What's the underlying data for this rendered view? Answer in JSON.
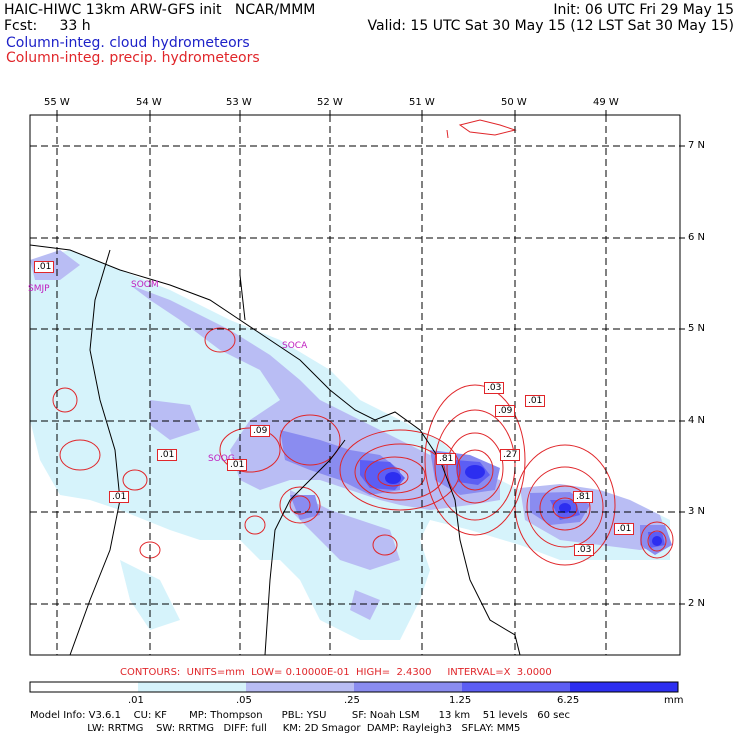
{
  "header": {
    "line1_left": "HAIC-HIWC 13km ARW-GFS init   NCAR/MMM",
    "line1_right": "Init: 06 UTC Fri 29 May 15",
    "line2_left": "Fcst:     33 h",
    "line2_right": "Valid: 15 UTC Sat 30 May 15 (12 LST Sat 30 May 15)",
    "field_cloud": "Column-integ. cloud hydrometeors",
    "field_precip": "Column-integ. precip. hydrometeors"
  },
  "colors": {
    "cloud_text": "#1e22c8",
    "precip_text": "#e0262a",
    "shade_levels": [
      "#ffffff",
      "#d6f3fb",
      "#b9bdf4",
      "#8a8cf0",
      "#5c5ef4",
      "#2c2ef0"
    ]
  },
  "axes": {
    "lon_labels": [
      "55 W",
      "54 W",
      "53 W",
      "52 W",
      "51 W",
      "50 W",
      "49 W"
    ],
    "lat_labels": [
      "7 N",
      "6 N",
      "5 N",
      "4 N",
      "3 N",
      "2 N"
    ]
  },
  "stations": [
    "SMJP",
    "SOOM",
    "SOCA",
    "SOOG"
  ],
  "contour_labels": [
    ".01",
    ".01",
    ".01",
    ".09",
    ".01",
    ".81",
    ".27",
    ".03",
    ".09",
    ".01",
    ".81",
    ".01",
    ".03"
  ],
  "contour_info": "CONTOURS:  UNITS=mm  LOW= 0.10000E-01  HIGH=  2.4300     INTERVAL=X  3.0000",
  "colorbar": {
    "ticks": [
      ".01",
      ".05",
      ".25",
      "1.25",
      "6.25"
    ],
    "units": "mm"
  },
  "model_info": {
    "line1": "Model Info: V3.6.1    CU: KF       MP: Thompson      PBL: YSU        SF: Noah LSM      13 km    51 levels   60 sec",
    "line2": "                  LW: RRTMG    SW: RRTMG   DIFF: full     KM: 2D Smagor  DAMP: Rayleigh3   SFLAY: MM5"
  }
}
